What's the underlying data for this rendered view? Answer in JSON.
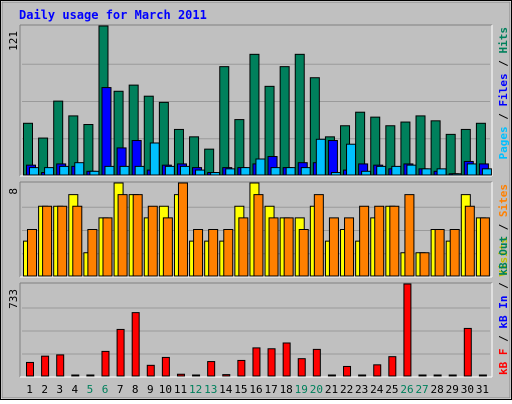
{
  "chart_data": [
    {
      "type": "bar",
      "title": "Daily usage for March 2011",
      "categories": [
        "1",
        "2",
        "3",
        "4",
        "5",
        "6",
        "7",
        "8",
        "9",
        "10",
        "11",
        "12",
        "13",
        "14",
        "15",
        "16",
        "17",
        "18",
        "19",
        "20",
        "21",
        "22",
        "23",
        "24",
        "25",
        "26",
        "27",
        "28",
        "29",
        "30",
        "31"
      ],
      "weekend_categories": [
        "5",
        "6",
        "12",
        "13",
        "19",
        "20",
        "26",
        "27"
      ],
      "ylim": [
        0,
        121
      ],
      "ytick_label": "121",
      "series": [
        {
          "name": "Hits",
          "color": "#00805c",
          "values": [
            42,
            30,
            60,
            48,
            41,
            121,
            68,
            73,
            64,
            59,
            37,
            31,
            21,
            88,
            45,
            98,
            72,
            88,
            98,
            79,
            31,
            40,
            51,
            47,
            40,
            43,
            48,
            44,
            33,
            37,
            42
          ]
        },
        {
          "name": "Files",
          "color": "#0000ff",
          "values": [
            8,
            2,
            9,
            7,
            3,
            71,
            22,
            28,
            4,
            8,
            9,
            6,
            2,
            6,
            6,
            9,
            15,
            6,
            10,
            10,
            28,
            4,
            9,
            8,
            5,
            9,
            5,
            3,
            1,
            11,
            9
          ]
        },
        {
          "name": "Pages",
          "color": "#00c0ff",
          "values": [
            6,
            6,
            7,
            10,
            3,
            7,
            7,
            7,
            26,
            7,
            7,
            4,
            2,
            5,
            6,
            13,
            6,
            6,
            6,
            29,
            2,
            25,
            3,
            7,
            7,
            8,
            5,
            5,
            1,
            9,
            5
          ]
        }
      ],
      "legend": [
        "Pages",
        "/",
        "Files",
        "/",
        "Hits"
      ]
    },
    {
      "type": "bar",
      "categories": [
        "1",
        "2",
        "3",
        "4",
        "5",
        "6",
        "7",
        "8",
        "9",
        "10",
        "11",
        "12",
        "13",
        "14",
        "15",
        "16",
        "17",
        "18",
        "19",
        "20",
        "21",
        "22",
        "23",
        "24",
        "25",
        "26",
        "27",
        "28",
        "29",
        "30",
        "31"
      ],
      "ylim": [
        0,
        8
      ],
      "ytick_label": "8",
      "series": [
        {
          "name": "Visits",
          "color": "#ffff00",
          "values": [
            3,
            6,
            6,
            7,
            2,
            5,
            8,
            7,
            5,
            6,
            7,
            3,
            3,
            3,
            6,
            8,
            6,
            5,
            5,
            6,
            3,
            4,
            3,
            5,
            6,
            2,
            2,
            4,
            3,
            7,
            5
          ]
        },
        {
          "name": "Sites",
          "color": "#ff8000",
          "values": [
            4,
            6,
            6,
            6,
            4,
            5,
            7,
            7,
            6,
            5,
            8,
            4,
            4,
            4,
            5,
            7,
            5,
            5,
            4,
            7,
            5,
            5,
            6,
            6,
            6,
            7,
            2,
            4,
            4,
            6,
            5
          ]
        }
      ],
      "legend": [
        "Visits",
        "/",
        "Sites"
      ]
    },
    {
      "type": "bar",
      "categories": [
        "1",
        "2",
        "3",
        "4",
        "5",
        "6",
        "7",
        "8",
        "9",
        "10",
        "11",
        "12",
        "13",
        "14",
        "15",
        "16",
        "17",
        "18",
        "19",
        "20",
        "21",
        "22",
        "23",
        "24",
        "25",
        "26",
        "27",
        "28",
        "29",
        "30",
        "31"
      ],
      "ylim": [
        0,
        733
      ],
      "ytick_label": "733",
      "series": [
        {
          "name": "kB F",
          "color": "#ff0000",
          "values": [
            0,
            0,
            0,
            0,
            0,
            0,
            0,
            0,
            0,
            0,
            0,
            0,
            0,
            0,
            0,
            0,
            0,
            0,
            0,
            0,
            0,
            0,
            0,
            0,
            0,
            0,
            0,
            0,
            0,
            0,
            0
          ]
        },
        {
          "name": "kB In",
          "color": "#0000ff",
          "values": [
            0,
            0,
            0,
            0,
            0,
            0,
            0,
            0,
            0,
            0,
            0,
            0,
            0,
            0,
            0,
            0,
            0,
            0,
            0,
            0,
            0,
            0,
            0,
            0,
            0,
            0,
            0,
            0,
            0,
            0,
            0
          ]
        },
        {
          "name": "kB Out",
          "color": "#ff0000",
          "values": [
            108,
            158,
            168,
            7,
            7,
            196,
            371,
            505,
            85,
            148,
            14,
            5,
            115,
            11,
            124,
            224,
            217,
            263,
            138,
            212,
            7,
            76,
            7,
            89,
            154,
            733,
            7,
            7,
            7,
            379,
            7
          ]
        }
      ],
      "legend": [
        "kB F",
        "/",
        "kB In",
        "/",
        "kB Out"
      ]
    }
  ],
  "legend_colors": {
    "Pages": "#00c0ff",
    "Files": "#0000ff",
    "Hits": "#00805c",
    "Visits": "#c0c000",
    "Sites": "#ff8000",
    "kB F": "#ff0000",
    "kB In": "#0000ff",
    "kB Out": "#00805c",
    "separator": "#000000"
  },
  "colors": {
    "title": "#0000ff",
    "panel_bg": "#c0c0c0",
    "outer_bg": "#ffffff",
    "day_normal": "#000000",
    "day_weekend": "#00805c"
  }
}
